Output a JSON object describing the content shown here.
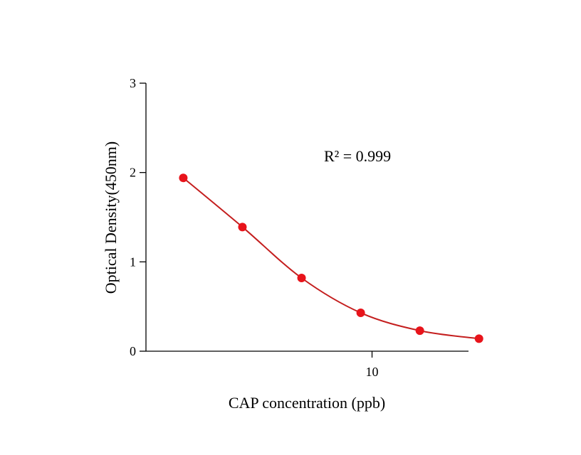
{
  "chart_data": {
    "type": "scatter",
    "title": "",
    "xlabel": "CAP concentration (ppb)",
    "ylabel": "Optical Density(450nm)",
    "x_scale": "log",
    "x_ticks": [
      10
    ],
    "x_tick_labels": [
      "10"
    ],
    "xlim": [
      0.15,
      60
    ],
    "ylim": [
      0,
      3
    ],
    "y_ticks": [
      0,
      1,
      2,
      3
    ],
    "y_tick_labels": [
      "0",
      "1",
      "2",
      "3"
    ],
    "grid": false,
    "annotation": "R² = 0.999",
    "series": [
      {
        "x": [
          0.3,
          0.9,
          2.7,
          8.1,
          24.3,
          72.9
        ],
        "y": [
          1.94,
          1.39,
          0.82,
          0.43,
          0.23,
          0.14
        ],
        "marker_color": "#e8141b",
        "fit_curve": "4PL",
        "line_color": "#c41e1e"
      }
    ]
  }
}
